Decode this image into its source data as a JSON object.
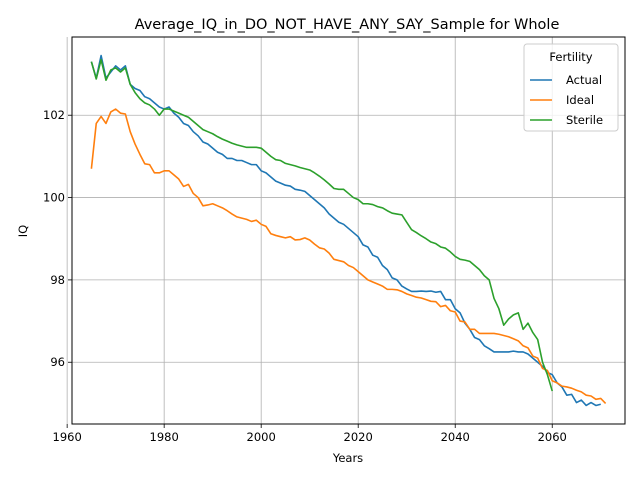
{
  "chart_data": {
    "type": "line",
    "title": "Average_IQ_in_DO_NOT_HAVE_ANY_SAY_Sample for Whole",
    "xlabel": "Years",
    "ylabel": "IQ",
    "xlim": [
      1961,
      2075
    ],
    "ylim": [
      94.5,
      103.9
    ],
    "xticks": [
      1960,
      1980,
      2000,
      2020,
      2040,
      2060
    ],
    "yticks": [
      96,
      98,
      100,
      102
    ],
    "grid": true,
    "legend": {
      "title": "Fertility",
      "position": "top-right"
    },
    "series": [
      {
        "name": "Actual",
        "color": "#1f77b4",
        "points": [
          [
            1965,
            103.3
          ],
          [
            1966,
            102.9
          ],
          [
            1967,
            103.45
          ],
          [
            1968,
            102.9
          ],
          [
            1969,
            103.05
          ],
          [
            1970,
            103.2
          ],
          [
            1971,
            103.1
          ],
          [
            1972,
            103.2
          ],
          [
            1973,
            102.75
          ],
          [
            1974,
            102.65
          ],
          [
            1975,
            102.6
          ],
          [
            1976,
            102.45
          ],
          [
            1977,
            102.4
          ],
          [
            1978,
            102.3
          ],
          [
            1979,
            102.2
          ],
          [
            1980,
            102.15
          ],
          [
            1981,
            102.2
          ],
          [
            1982,
            102.05
          ],
          [
            1983,
            101.95
          ],
          [
            1984,
            101.8
          ],
          [
            1985,
            101.75
          ],
          [
            1986,
            101.6
          ],
          [
            1987,
            101.5
          ],
          [
            1988,
            101.35
          ],
          [
            1989,
            101.3
          ],
          [
            1990,
            101.2
          ],
          [
            1991,
            101.1
          ],
          [
            1992,
            101.05
          ],
          [
            1993,
            100.95
          ],
          [
            1994,
            100.95
          ],
          [
            1995,
            100.9
          ],
          [
            1996,
            100.9
          ],
          [
            1997,
            100.85
          ],
          [
            1998,
            100.8
          ],
          [
            1999,
            100.8
          ],
          [
            2000,
            100.65
          ],
          [
            2001,
            100.6
          ],
          [
            2002,
            100.5
          ],
          [
            2003,
            100.4
          ],
          [
            2004,
            100.35
          ],
          [
            2005,
            100.3
          ],
          [
            2006,
            100.28
          ],
          [
            2007,
            100.2
          ],
          [
            2008,
            100.18
          ],
          [
            2009,
            100.15
          ],
          [
            2010,
            100.05
          ],
          [
            2011,
            99.95
          ],
          [
            2012,
            99.85
          ],
          [
            2013,
            99.75
          ],
          [
            2014,
            99.6
          ],
          [
            2015,
            99.5
          ],
          [
            2016,
            99.4
          ],
          [
            2017,
            99.35
          ],
          [
            2018,
            99.25
          ],
          [
            2019,
            99.15
          ],
          [
            2020,
            99.05
          ],
          [
            2021,
            98.85
          ],
          [
            2022,
            98.8
          ],
          [
            2023,
            98.6
          ],
          [
            2024,
            98.55
          ],
          [
            2025,
            98.35
          ],
          [
            2026,
            98.25
          ],
          [
            2027,
            98.05
          ],
          [
            2028,
            98.0
          ],
          [
            2029,
            97.85
          ],
          [
            2030,
            97.78
          ],
          [
            2031,
            97.72
          ],
          [
            2032,
            97.72
          ],
          [
            2033,
            97.73
          ],
          [
            2034,
            97.72
          ],
          [
            2035,
            97.73
          ],
          [
            2036,
            97.7
          ],
          [
            2037,
            97.72
          ],
          [
            2038,
            97.52
          ],
          [
            2039,
            97.52
          ],
          [
            2040,
            97.3
          ],
          [
            2041,
            97.2
          ],
          [
            2042,
            96.95
          ],
          [
            2043,
            96.8
          ],
          [
            2044,
            96.6
          ],
          [
            2045,
            96.55
          ],
          [
            2046,
            96.4
          ],
          [
            2047,
            96.33
          ],
          [
            2048,
            96.25
          ],
          [
            2049,
            96.25
          ],
          [
            2050,
            96.25
          ],
          [
            2051,
            96.25
          ],
          [
            2052,
            96.27
          ],
          [
            2053,
            96.25
          ],
          [
            2054,
            96.25
          ],
          [
            2055,
            96.2
          ],
          [
            2056,
            96.1
          ],
          [
            2057,
            96.0
          ],
          [
            2058,
            95.9
          ],
          [
            2059,
            95.75
          ],
          [
            2060,
            95.7
          ],
          [
            2061,
            95.5
          ],
          [
            2062,
            95.4
          ],
          [
            2063,
            95.2
          ],
          [
            2064,
            95.22
          ],
          [
            2065,
            95.02
          ],
          [
            2066,
            95.08
          ],
          [
            2067,
            94.95
          ],
          [
            2068,
            95.02
          ],
          [
            2069,
            94.95
          ],
          [
            2070,
            94.98
          ]
        ]
      },
      {
        "name": "Ideal",
        "color": "#ff7f0e",
        "points": [
          [
            1965,
            100.7
          ],
          [
            1966,
            101.8
          ],
          [
            1967,
            101.97
          ],
          [
            1968,
            101.8
          ],
          [
            1969,
            102.08
          ],
          [
            1970,
            102.15
          ],
          [
            1971,
            102.05
          ],
          [
            1972,
            102.03
          ],
          [
            1973,
            101.6
          ],
          [
            1974,
            101.3
          ],
          [
            1975,
            101.05
          ],
          [
            1976,
            100.82
          ],
          [
            1977,
            100.8
          ],
          [
            1978,
            100.6
          ],
          [
            1979,
            100.6
          ],
          [
            1980,
            100.65
          ],
          [
            1981,
            100.65
          ],
          [
            1982,
            100.55
          ],
          [
            1983,
            100.45
          ],
          [
            1984,
            100.27
          ],
          [
            1985,
            100.32
          ],
          [
            1986,
            100.1
          ],
          [
            1987,
            100.0
          ],
          [
            1988,
            99.8
          ],
          [
            1989,
            99.82
          ],
          [
            1990,
            99.85
          ],
          [
            1991,
            99.8
          ],
          [
            1992,
            99.75
          ],
          [
            1993,
            99.68
          ],
          [
            1994,
            99.6
          ],
          [
            1995,
            99.53
          ],
          [
            1996,
            99.5
          ],
          [
            1997,
            99.47
          ],
          [
            1998,
            99.42
          ],
          [
            1999,
            99.45
          ],
          [
            2000,
            99.35
          ],
          [
            2001,
            99.3
          ],
          [
            2002,
            99.12
          ],
          [
            2003,
            99.08
          ],
          [
            2004,
            99.05
          ],
          [
            2005,
            99.02
          ],
          [
            2006,
            99.05
          ],
          [
            2007,
            98.97
          ],
          [
            2008,
            98.98
          ],
          [
            2009,
            99.02
          ],
          [
            2010,
            98.97
          ],
          [
            2011,
            98.87
          ],
          [
            2012,
            98.78
          ],
          [
            2013,
            98.75
          ],
          [
            2014,
            98.65
          ],
          [
            2015,
            98.5
          ],
          [
            2016,
            98.47
          ],
          [
            2017,
            98.44
          ],
          [
            2018,
            98.35
          ],
          [
            2019,
            98.3
          ],
          [
            2020,
            98.2
          ],
          [
            2021,
            98.1
          ],
          [
            2022,
            98.0
          ],
          [
            2023,
            97.95
          ],
          [
            2024,
            97.9
          ],
          [
            2025,
            97.85
          ],
          [
            2026,
            97.77
          ],
          [
            2027,
            97.77
          ],
          [
            2028,
            97.76
          ],
          [
            2029,
            97.72
          ],
          [
            2030,
            97.66
          ],
          [
            2031,
            97.62
          ],
          [
            2032,
            97.58
          ],
          [
            2033,
            97.56
          ],
          [
            2034,
            97.52
          ],
          [
            2035,
            97.48
          ],
          [
            2036,
            97.47
          ],
          [
            2037,
            97.35
          ],
          [
            2038,
            97.38
          ],
          [
            2039,
            97.25
          ],
          [
            2040,
            97.22
          ],
          [
            2041,
            97.0
          ],
          [
            2042,
            96.98
          ],
          [
            2043,
            96.8
          ],
          [
            2044,
            96.8
          ],
          [
            2045,
            96.7
          ],
          [
            2046,
            96.7
          ],
          [
            2047,
            96.7
          ],
          [
            2048,
            96.7
          ],
          [
            2049,
            96.68
          ],
          [
            2050,
            96.65
          ],
          [
            2051,
            96.62
          ],
          [
            2052,
            96.57
          ],
          [
            2053,
            96.52
          ],
          [
            2054,
            96.4
          ],
          [
            2055,
            96.35
          ],
          [
            2056,
            96.15
          ],
          [
            2057,
            96.1
          ],
          [
            2058,
            95.85
          ],
          [
            2059,
            95.8
          ],
          [
            2060,
            95.55
          ],
          [
            2061,
            95.5
          ],
          [
            2062,
            95.42
          ],
          [
            2063,
            95.4
          ],
          [
            2064,
            95.37
          ],
          [
            2065,
            95.32
          ],
          [
            2066,
            95.28
          ],
          [
            2067,
            95.2
          ],
          [
            2068,
            95.18
          ],
          [
            2069,
            95.1
          ],
          [
            2070,
            95.12
          ],
          [
            2071,
            95.0
          ]
        ]
      },
      {
        "name": "Sterile",
        "color": "#2ca02c",
        "points": [
          [
            1965,
            103.3
          ],
          [
            1966,
            102.88
          ],
          [
            1967,
            103.35
          ],
          [
            1968,
            102.85
          ],
          [
            1969,
            103.1
          ],
          [
            1970,
            103.15
          ],
          [
            1971,
            103.05
          ],
          [
            1972,
            103.15
          ],
          [
            1973,
            102.75
          ],
          [
            1974,
            102.55
          ],
          [
            1975,
            102.4
          ],
          [
            1976,
            102.3
          ],
          [
            1977,
            102.25
          ],
          [
            1978,
            102.15
          ],
          [
            1979,
            102.0
          ],
          [
            1980,
            102.15
          ],
          [
            1981,
            102.15
          ],
          [
            1982,
            102.1
          ],
          [
            1983,
            102.05
          ],
          [
            1984,
            102.0
          ],
          [
            1985,
            101.95
          ],
          [
            1986,
            101.85
          ],
          [
            1987,
            101.75
          ],
          [
            1988,
            101.65
          ],
          [
            1989,
            101.6
          ],
          [
            1990,
            101.55
          ],
          [
            1991,
            101.48
          ],
          [
            1992,
            101.42
          ],
          [
            1993,
            101.37
          ],
          [
            1994,
            101.32
          ],
          [
            1995,
            101.28
          ],
          [
            1996,
            101.25
          ],
          [
            1997,
            101.22
          ],
          [
            1998,
            101.22
          ],
          [
            1999,
            101.22
          ],
          [
            2000,
            101.2
          ],
          [
            2001,
            101.1
          ],
          [
            2002,
            101.0
          ],
          [
            2003,
            100.92
          ],
          [
            2004,
            100.9
          ],
          [
            2005,
            100.83
          ],
          [
            2006,
            100.8
          ],
          [
            2007,
            100.77
          ],
          [
            2008,
            100.73
          ],
          [
            2009,
            100.7
          ],
          [
            2010,
            100.67
          ],
          [
            2011,
            100.6
          ],
          [
            2012,
            100.52
          ],
          [
            2013,
            100.43
          ],
          [
            2014,
            100.33
          ],
          [
            2015,
            100.22
          ],
          [
            2016,
            100.2
          ],
          [
            2017,
            100.2
          ],
          [
            2018,
            100.1
          ],
          [
            2019,
            100.0
          ],
          [
            2020,
            99.95
          ],
          [
            2021,
            99.85
          ],
          [
            2022,
            99.85
          ],
          [
            2023,
            99.83
          ],
          [
            2024,
            99.78
          ],
          [
            2025,
            99.75
          ],
          [
            2026,
            99.68
          ],
          [
            2027,
            99.62
          ],
          [
            2028,
            99.6
          ],
          [
            2029,
            99.58
          ],
          [
            2030,
            99.4
          ],
          [
            2031,
            99.22
          ],
          [
            2032,
            99.15
          ],
          [
            2033,
            99.07
          ],
          [
            2034,
            99.0
          ],
          [
            2035,
            98.92
          ],
          [
            2036,
            98.88
          ],
          [
            2037,
            98.8
          ],
          [
            2038,
            98.77
          ],
          [
            2039,
            98.68
          ],
          [
            2040,
            98.57
          ],
          [
            2041,
            98.5
          ],
          [
            2042,
            98.48
          ],
          [
            2043,
            98.45
          ],
          [
            2044,
            98.35
          ],
          [
            2045,
            98.25
          ],
          [
            2046,
            98.1
          ],
          [
            2047,
            98.0
          ],
          [
            2048,
            97.55
          ],
          [
            2049,
            97.3
          ],
          [
            2050,
            96.9
          ],
          [
            2051,
            97.05
          ],
          [
            2052,
            97.15
          ],
          [
            2053,
            97.2
          ],
          [
            2054,
            96.8
          ],
          [
            2055,
            96.95
          ],
          [
            2056,
            96.72
          ],
          [
            2057,
            96.55
          ],
          [
            2058,
            96.0
          ],
          [
            2059,
            95.7
          ],
          [
            2060,
            95.3
          ]
        ]
      }
    ]
  }
}
